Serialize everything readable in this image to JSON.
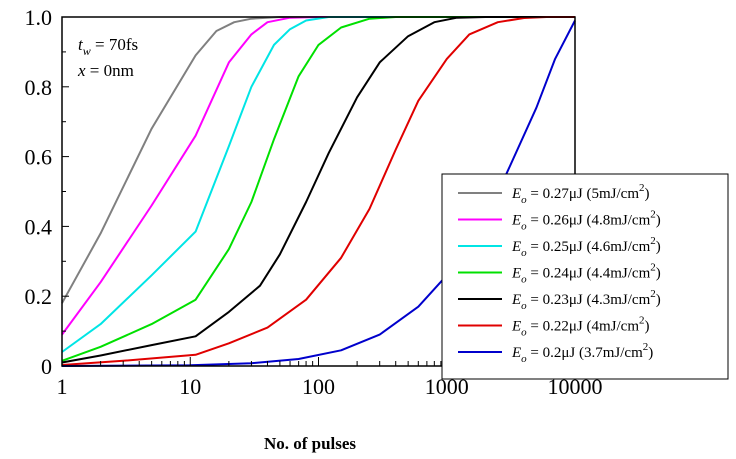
{
  "chart_data": {
    "type": "line",
    "xscale": "log",
    "xlim": [
      1,
      10000
    ],
    "ylim": [
      0,
      1.0
    ],
    "xlabel": "No. of pulses",
    "ylabel": "",
    "title": "",
    "x_ticks": [
      "1",
      "10",
      "100",
      "1000",
      "10000"
    ],
    "y_ticks": [
      "0",
      "0.2",
      "0.4",
      "0.6",
      "0.8",
      "1.0"
    ],
    "annotation": {
      "line1": {
        "var": "t",
        "sub": "w",
        "rest": " = 70fs"
      },
      "line2": {
        "var": "x",
        "rest": " = 0nm"
      }
    },
    "legend_position": "lower-right",
    "series": [
      {
        "name": "E_o = 0.27μJ (5mJ/cm2)",
        "legend": {
          "value": "= 0.27μJ (5mJ/cm",
          "close": ")"
        },
        "color": "#808080",
        "points": [
          [
            1,
            0.18
          ],
          [
            2,
            0.38
          ],
          [
            5,
            0.68
          ],
          [
            11,
            0.89
          ],
          [
            16,
            0.96
          ],
          [
            22,
            0.985
          ],
          [
            30,
            0.995
          ],
          [
            50,
            1.0
          ],
          [
            10000,
            1.0
          ]
        ]
      },
      {
        "name": "E_o = 0.26μJ (4.8mJ/cm2)",
        "legend": {
          "value": "= 0.26μJ (4.8mJ/cm",
          "close": ")"
        },
        "color": "#ff00ff",
        "points": [
          [
            1,
            0.09
          ],
          [
            2,
            0.24
          ],
          [
            5,
            0.46
          ],
          [
            11,
            0.66
          ],
          [
            20,
            0.87
          ],
          [
            30,
            0.95
          ],
          [
            40,
            0.985
          ],
          [
            60,
            0.998
          ],
          [
            100,
            1.0
          ],
          [
            10000,
            1.0
          ]
        ]
      },
      {
        "name": "E_o = 0.25μJ (4.6mJ/cm2)",
        "legend": {
          "value": "= 0.25μJ (4.6mJ/cm",
          "close": ")"
        },
        "color": "#00e5e5",
        "points": [
          [
            1,
            0.04
          ],
          [
            2,
            0.12
          ],
          [
            5,
            0.26
          ],
          [
            11,
            0.385
          ],
          [
            20,
            0.63
          ],
          [
            30,
            0.8
          ],
          [
            45,
            0.92
          ],
          [
            60,
            0.965
          ],
          [
            80,
            0.99
          ],
          [
            120,
            1.0
          ],
          [
            10000,
            1.0
          ]
        ]
      },
      {
        "name": "E_o = 0.24μJ (4.4mJ/cm2)",
        "legend": {
          "value": "= 0.24μJ (4.4mJ/cm",
          "close": ")"
        },
        "color": "#00e000",
        "points": [
          [
            1,
            0.015
          ],
          [
            2,
            0.055
          ],
          [
            5,
            0.12
          ],
          [
            11,
            0.19
          ],
          [
            20,
            0.335
          ],
          [
            30,
            0.47
          ],
          [
            45,
            0.65
          ],
          [
            70,
            0.83
          ],
          [
            100,
            0.92
          ],
          [
            150,
            0.97
          ],
          [
            250,
            0.995
          ],
          [
            400,
            1.0
          ],
          [
            10000,
            1.0
          ]
        ]
      },
      {
        "name": "E_o = 0.23μJ (4.3mJ/cm2)",
        "legend": {
          "value": "= 0.23μJ (4.3mJ/cm",
          "close": ")"
        },
        "color": "#000000",
        "points": [
          [
            1,
            0.01
          ],
          [
            2,
            0.03
          ],
          [
            5,
            0.06
          ],
          [
            11,
            0.085
          ],
          [
            20,
            0.155
          ],
          [
            35,
            0.23
          ],
          [
            50,
            0.32
          ],
          [
            80,
            0.47
          ],
          [
            120,
            0.61
          ],
          [
            200,
            0.77
          ],
          [
            300,
            0.87
          ],
          [
            500,
            0.945
          ],
          [
            800,
            0.985
          ],
          [
            1200,
            0.998
          ],
          [
            2000,
            1.0
          ],
          [
            10000,
            1.0
          ]
        ]
      },
      {
        "name": "E_o = 0.22μJ (4mJ/cm2)",
        "legend": {
          "value": "= 0.22μJ (4mJ/cm",
          "close": ")"
        },
        "color": "#e00000",
        "points": [
          [
            1,
            0.003
          ],
          [
            3,
            0.015
          ],
          [
            11,
            0.032
          ],
          [
            20,
            0.065
          ],
          [
            40,
            0.11
          ],
          [
            80,
            0.19
          ],
          [
            150,
            0.31
          ],
          [
            250,
            0.45
          ],
          [
            400,
            0.62
          ],
          [
            600,
            0.76
          ],
          [
            1000,
            0.88
          ],
          [
            1500,
            0.95
          ],
          [
            2500,
            0.985
          ],
          [
            4000,
            0.997
          ],
          [
            6000,
            1.0
          ],
          [
            10000,
            1.0
          ]
        ]
      },
      {
        "name": "E_o = 0.2μJ (3.7mJ/cm2)",
        "legend": {
          "value": "= 0.2μJ (3.7mJ/cm",
          "close": ")"
        },
        "color": "#0000cc",
        "points": [
          [
            1,
            0.0
          ],
          [
            10,
            0.002
          ],
          [
            30,
            0.008
          ],
          [
            70,
            0.02
          ],
          [
            150,
            0.045
          ],
          [
            300,
            0.09
          ],
          [
            600,
            0.17
          ],
          [
            1000,
            0.26
          ],
          [
            2000,
            0.42
          ],
          [
            3000,
            0.56
          ],
          [
            5000,
            0.74
          ],
          [
            7000,
            0.88
          ],
          [
            10000,
            0.99
          ]
        ]
      }
    ]
  }
}
